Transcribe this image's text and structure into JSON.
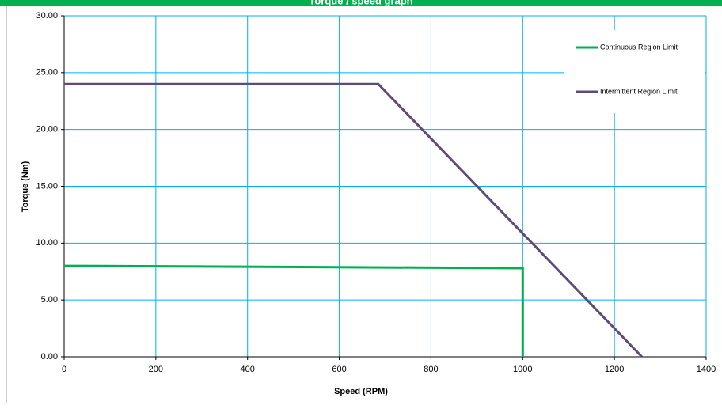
{
  "chart_data": {
    "type": "line",
    "title": "Torque / speed graph",
    "xlabel": "Speed (RPM)",
    "ylabel": "Torque (Nm)",
    "xlim": [
      0,
      1400
    ],
    "xticks": [
      0,
      200,
      400,
      600,
      800,
      1000,
      1200,
      1400
    ],
    "ylim": [
      0,
      30
    ],
    "yticks": [
      {
        "value": 0,
        "label": "0.00"
      },
      {
        "value": 5,
        "label": "5.00"
      },
      {
        "value": 10,
        "label": "10.00"
      },
      {
        "value": 15,
        "label": "15.00"
      },
      {
        "value": 20,
        "label": "20.00"
      },
      {
        "value": 25,
        "label": "25.00"
      },
      {
        "value": 30,
        "label": "30.00"
      }
    ],
    "grid": true,
    "legend": "upper right",
    "series": [
      {
        "name": "Continuous Region Limit",
        "color": "#00b050",
        "x": [
          0,
          1000,
          1000
        ],
        "values": [
          8,
          7.8,
          0
        ]
      },
      {
        "name": "Intermittent Region Limit",
        "color": "#604a7b",
        "x": [
          0,
          685,
          1260
        ],
        "values": [
          24,
          24,
          0
        ]
      }
    ]
  }
}
